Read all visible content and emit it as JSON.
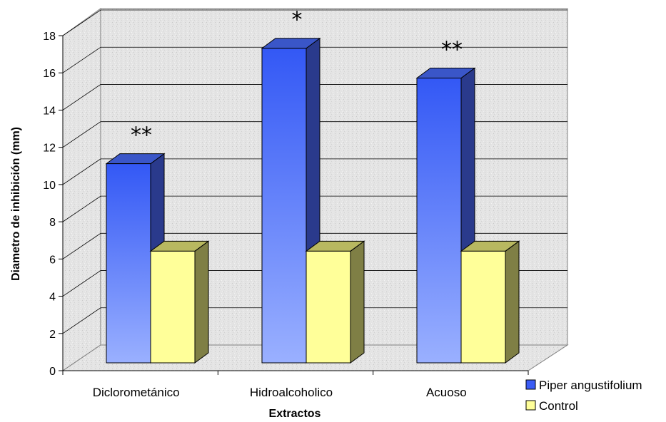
{
  "chart_data": {
    "type": "bar",
    "subtype": "3d-clustered-column",
    "categories": [
      "Diclorometánico",
      "Hidroalcoholico",
      "Acuoso"
    ],
    "series": [
      {
        "name": "Piper angustifolium",
        "values": [
          10.7,
          16.9,
          15.3
        ],
        "color": "#3b5cf5"
      },
      {
        "name": "Control",
        "values": [
          6,
          6,
          6
        ],
        "color": "#ffff99"
      }
    ],
    "annotations": [
      "**",
      "*",
      "**"
    ],
    "xlabel": "Extractos",
    "ylabel": "Diametro de inhibición (mm)",
    "ylim": [
      0,
      18
    ],
    "yticks": [
      0,
      2,
      4,
      6,
      8,
      10,
      12,
      14,
      16,
      18
    ],
    "grid": true,
    "legend": "bottom-right"
  }
}
